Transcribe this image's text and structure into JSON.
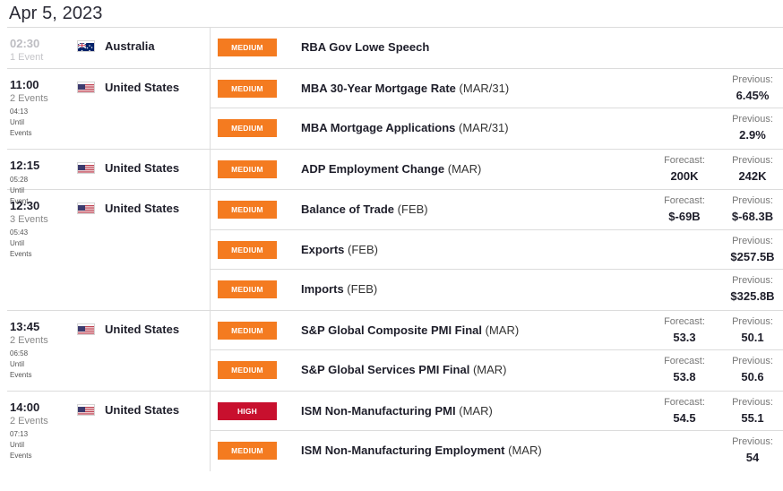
{
  "date": "Apr 5, 2023",
  "colors": {
    "medium": "#f47b20",
    "high": "#c8102e"
  },
  "groups": [
    {
      "time": "02:30",
      "count": "1 Event",
      "until": [],
      "past": true,
      "country": "Australia",
      "flag": "australia-flag-icon",
      "events": [
        {
          "impact": "MEDIUM",
          "name": "RBA Gov Lowe Speech",
          "period": "",
          "forecast_label": "",
          "forecast": "",
          "previous_label": "",
          "previous": ""
        }
      ]
    },
    {
      "time": "11:00",
      "count": "2 Events",
      "until": [
        "04:13",
        "Until",
        "Events"
      ],
      "past": false,
      "country": "United States",
      "flag": "us-flag-icon",
      "events": [
        {
          "impact": "MEDIUM",
          "name": "MBA 30-Year Mortgage Rate",
          "period": "(MAR/31)",
          "forecast_label": "",
          "forecast": "",
          "previous_label": "Previous:",
          "previous": "6.45%"
        },
        {
          "impact": "MEDIUM",
          "name": "MBA Mortgage Applications",
          "period": "(MAR/31)",
          "forecast_label": "",
          "forecast": "",
          "previous_label": "Previous:",
          "previous": "2.9%"
        }
      ]
    },
    {
      "time": "12:15",
      "count": "",
      "until": [
        "05:28",
        "Until",
        "Event"
      ],
      "past": false,
      "country": "United States",
      "flag": "us-flag-icon",
      "events": [
        {
          "impact": "MEDIUM",
          "name": "ADP Employment Change",
          "period": "(MAR)",
          "forecast_label": "Forecast:",
          "forecast": "200K",
          "previous_label": "Previous:",
          "previous": "242K"
        }
      ]
    },
    {
      "time": "12:30",
      "count": "3 Events",
      "until": [
        "05:43",
        "Until",
        "Events"
      ],
      "past": false,
      "country": "United States",
      "flag": "us-flag-icon",
      "events": [
        {
          "impact": "MEDIUM",
          "name": "Balance of Trade",
          "period": "(FEB)",
          "forecast_label": "Forecast:",
          "forecast": "$-69B",
          "previous_label": "Previous:",
          "previous": "$-68.3B"
        },
        {
          "impact": "MEDIUM",
          "name": "Exports",
          "period": "(FEB)",
          "forecast_label": "",
          "forecast": "",
          "previous_label": "Previous:",
          "previous": "$257.5B"
        },
        {
          "impact": "MEDIUM",
          "name": "Imports",
          "period": "(FEB)",
          "forecast_label": "",
          "forecast": "",
          "previous_label": "Previous:",
          "previous": "$325.8B"
        }
      ]
    },
    {
      "time": "13:45",
      "count": "2 Events",
      "until": [
        "06:58",
        "Until",
        "Events"
      ],
      "past": false,
      "country": "United States",
      "flag": "us-flag-icon",
      "events": [
        {
          "impact": "MEDIUM",
          "name": "S&P Global Composite PMI Final",
          "period": "(MAR)",
          "forecast_label": "Forecast:",
          "forecast": "53.3",
          "previous_label": "Previous:",
          "previous": "50.1"
        },
        {
          "impact": "MEDIUM",
          "name": "S&P Global Services PMI Final",
          "period": "(MAR)",
          "forecast_label": "Forecast:",
          "forecast": "53.8",
          "previous_label": "Previous:",
          "previous": "50.6"
        }
      ]
    },
    {
      "time": "14:00",
      "count": "2 Events",
      "until": [
        "07:13",
        "Until",
        "Events"
      ],
      "past": false,
      "country": "United States",
      "flag": "us-flag-icon",
      "events": [
        {
          "impact": "HIGH",
          "name": "ISM Non-Manufacturing PMI",
          "period": "(MAR)",
          "forecast_label": "Forecast:",
          "forecast": "54.5",
          "previous_label": "Previous:",
          "previous": "55.1"
        },
        {
          "impact": "MEDIUM",
          "name": "ISM Non-Manufacturing Employment",
          "period": "(MAR)",
          "forecast_label": "",
          "forecast": "",
          "previous_label": "Previous:",
          "previous": "54"
        }
      ]
    }
  ]
}
